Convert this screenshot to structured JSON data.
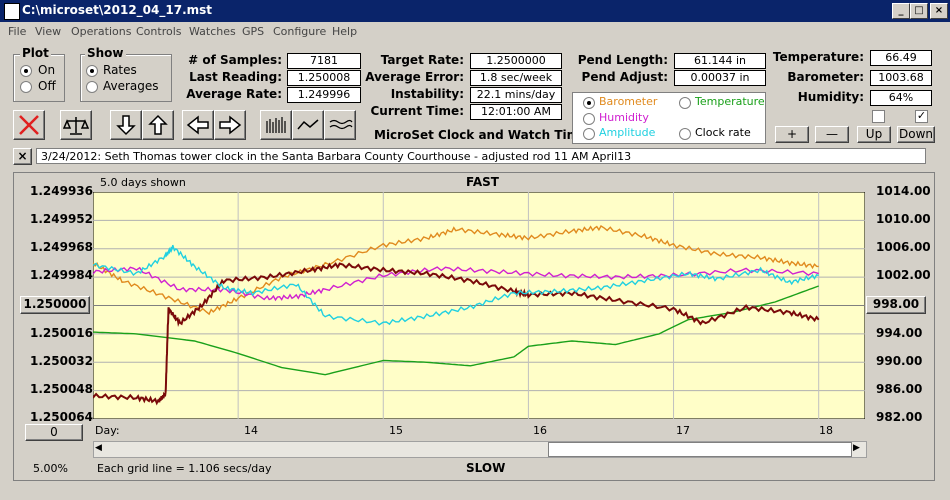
{
  "window": {
    "title": "C:\\microset\\2012_04_17.mst",
    "minimize": "_",
    "maximize": "□",
    "close": "×"
  },
  "menu": [
    "File",
    "View",
    "Operations",
    "Controls",
    "Watches",
    "GPS",
    "Configure",
    "Help"
  ],
  "plot_group": {
    "title": "Plot",
    "options": [
      "On",
      "Off"
    ],
    "selected": "On"
  },
  "show_group": {
    "title": "Show",
    "options": [
      "Rates",
      "Averages"
    ],
    "selected": "Rates"
  },
  "stats_left": [
    {
      "label": "# of Samples:",
      "value": "7181"
    },
    {
      "label": "Last Reading:",
      "value": "1.250008"
    },
    {
      "label": "Average Rate:",
      "value": "1.249996"
    }
  ],
  "stats_mid": [
    {
      "label": "Target Rate:",
      "value": "1.2500000"
    },
    {
      "label": "Average Error:",
      "value": "1.8 sec/week"
    },
    {
      "label": "Instability:",
      "value": "22.1 mins/day"
    },
    {
      "label": "Current Time:",
      "value": "12:01:00 AM"
    }
  ],
  "stats_pend": [
    {
      "label": "Pend Length:",
      "value": "61.144 in"
    },
    {
      "label": "Pend Adjust:",
      "value": "0.00037 in"
    }
  ],
  "stats_env": [
    {
      "label": "Temperature:",
      "value": "66.49"
    },
    {
      "label": "Barometer:",
      "value": "1003.68"
    },
    {
      "label": "Humidity:",
      "value": "64%"
    }
  ],
  "app_name": "MicroSet Clock and Watch Timer",
  "series_options": [
    {
      "label": "Barometer",
      "color": "#e08a1e",
      "selected": true
    },
    {
      "label": "Temperature",
      "color": "#1aa01a",
      "selected": false
    },
    {
      "label": "Humidity",
      "color": "#d020d0",
      "selected": false
    },
    {
      "label": "Clock rate",
      "color": "#000000",
      "selected": false
    },
    {
      "label": "Amplitude",
      "color": "#20d0e0",
      "selected": false
    }
  ],
  "scale_buttons": [
    "+",
    "—",
    "Up",
    "Down"
  ],
  "checkboxes": [
    false,
    true
  ],
  "note": "3/24/2012: Seth Thomas tower clock in the Santa Barbara County Courthouse - adjusted rod 11 AM  April13",
  "note_close": "×",
  "plot": {
    "days_shown": "5.0 days shown",
    "top_label": "FAST",
    "bottom_label": "SLOW",
    "grid_note": "Each grid line = 1.106 secs/day",
    "percent": "5.00%",
    "center_left": "1.250000",
    "center_right": "998.00",
    "zero_button": "0",
    "x_label": "Day:"
  },
  "chart_data": {
    "type": "line",
    "x_label": "Day:",
    "x_ticks": [
      "14",
      "15",
      "16",
      "17",
      "18"
    ],
    "x_range": [
      13.0,
      18.0
    ],
    "y_left_ticks": [
      "1.249936",
      "1.249952",
      "1.249968",
      "1.249984",
      "1.250000",
      "1.250016",
      "1.250032",
      "1.250048",
      "1.250064"
    ],
    "y_left_range": [
      1.250064,
      1.249936
    ],
    "y_right_ticks": [
      "1014.00",
      "1010.00",
      "1006.00",
      "1002.00",
      "998.00",
      "994.00",
      "990.00",
      "986.00",
      "982.00"
    ],
    "y_right_range": [
      982.0,
      1014.0
    ],
    "grid": true,
    "series": [
      {
        "name": "Barometer",
        "color": "#e08a1e",
        "x": [
          13.0,
          13.2,
          13.5,
          13.8,
          14.0,
          14.3,
          14.6,
          15.0,
          15.3,
          15.5,
          15.8,
          16.0,
          16.3,
          16.5,
          16.8,
          17.0,
          17.3,
          17.6,
          17.8,
          18.0
        ],
        "y": [
          1.249976,
          1.249986,
          1.249995,
          1.250004,
          1.249996,
          1.249984,
          1.249977,
          1.249966,
          1.249962,
          1.249957,
          1.24996,
          1.249962,
          1.249958,
          1.249956,
          1.249961,
          1.249966,
          1.249971,
          1.249973,
          1.249976,
          1.249978
        ]
      },
      {
        "name": "Temperature",
        "color": "#1aa01a",
        "x": [
          13.0,
          13.3,
          13.7,
          14.0,
          14.3,
          14.6,
          15.0,
          15.3,
          15.6,
          15.9,
          16.0,
          16.3,
          16.6,
          16.9,
          17.1,
          17.4,
          17.7,
          18.0
        ],
        "y": [
          1.250015,
          1.250016,
          1.25002,
          1.250027,
          1.250035,
          1.250039,
          1.250031,
          1.250032,
          1.250034,
          1.250029,
          1.250023,
          1.25002,
          1.250022,
          1.250016,
          1.250008,
          1.250004,
          1.249998,
          1.249989
        ]
      },
      {
        "name": "Humidity",
        "color": "#d020d0",
        "x": [
          13.0,
          13.3,
          13.6,
          13.9,
          14.2,
          14.4,
          14.6,
          15.0,
          15.4,
          15.8,
          16.2,
          16.6,
          17.0,
          17.5,
          18.0
        ],
        "y": [
          1.249981,
          1.249979,
          1.249991,
          1.249991,
          1.249996,
          1.249995,
          1.249991,
          1.249983,
          1.249979,
          1.249981,
          1.249983,
          1.249984,
          1.249983,
          1.24998,
          1.249982
        ]
      },
      {
        "name": "Clock rate",
        "color": "#7a0a0a",
        "x": [
          13.0,
          13.3,
          13.45,
          13.5,
          13.52,
          13.6,
          13.75,
          13.9,
          14.2,
          14.5,
          14.7,
          15.0,
          15.3,
          15.6,
          15.9,
          16.0,
          16.3,
          16.6,
          17.0,
          17.2,
          17.5,
          17.8,
          18.0
        ],
        "y": [
          1.250051,
          1.250052,
          1.250054,
          1.25005,
          1.250002,
          1.25001,
          1.25,
          1.249986,
          1.249984,
          1.24998,
          1.249977,
          1.24998,
          1.249982,
          1.249986,
          1.249992,
          1.249994,
          1.249993,
          1.249997,
          1.250002,
          1.25001,
          1.250001,
          1.250004,
          1.250008
        ]
      },
      {
        "name": "Amplitude",
        "color": "#20d0e0",
        "x": [
          13.0,
          13.3,
          13.5,
          13.55,
          13.7,
          13.9,
          14.1,
          14.4,
          14.6,
          15.0,
          15.3,
          15.6,
          15.9,
          16.2,
          16.5,
          16.8,
          17.1,
          17.3,
          17.6,
          17.8,
          18.0
        ],
        "y": [
          1.249977,
          1.249982,
          1.249972,
          1.249967,
          1.249978,
          1.24999,
          1.249993,
          1.249988,
          1.250006,
          1.25001,
          1.250006,
          1.250001,
          1.249993,
          1.249992,
          1.24999,
          1.249986,
          1.249982,
          1.249985,
          1.24998,
          1.249987,
          1.249983
        ]
      }
    ]
  }
}
